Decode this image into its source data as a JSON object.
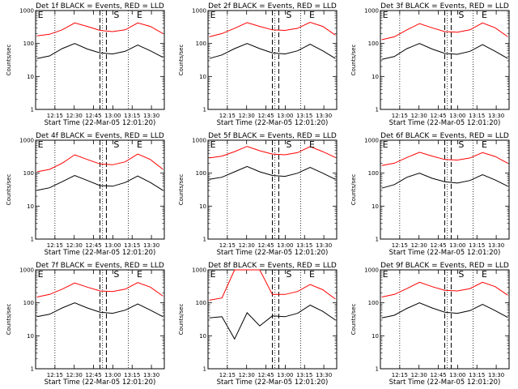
{
  "chart_data": [
    {
      "type": "line",
      "title": "Det 1f BLACK = Events, RED = LLD",
      "xlabel": "Start Time (22-Mar-05 12:01:20)",
      "ylabel": "Counts/sec",
      "y_scale": "log",
      "ylim": [
        1,
        1000
      ],
      "x_ticks": [
        "12:15",
        "12:30",
        "12:45",
        "13:00",
        "13:15",
        "13:30"
      ],
      "y_ticks": [
        "1",
        "10",
        "100",
        "1000"
      ],
      "markers": [
        "E",
        "S",
        "E"
      ],
      "series": [
        {
          "color": "#ff0000",
          "values": [
            170,
            190,
            260,
            420,
            330,
            250,
            230,
            260,
            420,
            330,
            200
          ]
        },
        {
          "color": "#000000",
          "values": [
            35,
            42,
            70,
            100,
            68,
            52,
            48,
            58,
            90,
            60,
            38
          ]
        }
      ]
    },
    {
      "type": "line",
      "title": "Det 2f BLACK = Events, RED = LLD",
      "xlabel": "Start Time (22-Mar-05 12:01:20)",
      "ylabel": "Counts/sec",
      "y_scale": "log",
      "ylim": [
        1,
        1000
      ],
      "x_ticks": [
        "12:15",
        "12:30",
        "12:45",
        "13:00",
        "13:15",
        "13:30"
      ],
      "y_ticks": [
        "1",
        "10",
        "100",
        "1000"
      ],
      "markers": [
        "E",
        "S",
        "E"
      ],
      "series": [
        {
          "color": "#ff0000",
          "values": [
            160,
            200,
            290,
            430,
            330,
            260,
            250,
            290,
            440,
            330,
            180
          ]
        },
        {
          "color": "#000000",
          "values": [
            35,
            45,
            70,
            100,
            70,
            52,
            48,
            60,
            95,
            60,
            35
          ]
        }
      ]
    },
    {
      "type": "line",
      "title": "Det 3f BLACK = Events, RED = LLD",
      "xlabel": "Start Time (22-Mar-05 12:01:20)",
      "ylabel": "Counts/sec",
      "y_scale": "log",
      "ylim": [
        1,
        1000
      ],
      "x_ticks": [
        "12:15",
        "12:30",
        "12:45",
        "13:00",
        "13:15",
        "13:30"
      ],
      "y_ticks": [
        "1",
        "10",
        "100",
        "1000"
      ],
      "markers": [
        "E",
        "S",
        "E"
      ],
      "series": [
        {
          "color": "#ff0000",
          "values": [
            130,
            160,
            260,
            400,
            300,
            230,
            220,
            260,
            420,
            300,
            160
          ]
        },
        {
          "color": "#000000",
          "values": [
            33,
            40,
            70,
            100,
            68,
            50,
            47,
            58,
            92,
            58,
            35
          ]
        }
      ]
    },
    {
      "type": "line",
      "title": "Det 4f BLACK = Events, RED = LLD",
      "xlabel": "Start Time (22-Mar-05 12:01:20)",
      "ylabel": "Counts/sec",
      "y_scale": "log",
      "ylim": [
        1,
        1000
      ],
      "x_ticks": [
        "12:15",
        "12:30",
        "12:45",
        "13:00",
        "13:15",
        "13:30"
      ],
      "y_ticks": [
        "1",
        "10",
        "100",
        "1000"
      ],
      "markers": [
        "E",
        "S",
        "E"
      ],
      "series": [
        {
          "color": "#ff0000",
          "values": [
            110,
            130,
            200,
            360,
            260,
            190,
            180,
            220,
            380,
            260,
            130
          ]
        },
        {
          "color": "#000000",
          "values": [
            30,
            36,
            55,
            85,
            60,
            42,
            40,
            52,
            82,
            52,
            30
          ]
        }
      ]
    },
    {
      "type": "line",
      "title": "Det 5f BLACK = Events, RED = LLD",
      "xlabel": "Start Time (22-Mar-05 12:01:20)",
      "ylabel": "Counts/sec",
      "y_scale": "log",
      "ylim": [
        1,
        1000
      ],
      "x_ticks": [
        "12:15",
        "12:30",
        "12:45",
        "13:00",
        "13:15",
        "13:30"
      ],
      "y_ticks": [
        "1",
        "10",
        "100",
        "1000"
      ],
      "markers": [
        "E",
        "S",
        "E"
      ],
      "series": [
        {
          "color": "#ff0000",
          "values": [
            290,
            330,
            450,
            650,
            480,
            380,
            360,
            420,
            640,
            450,
            300
          ]
        },
        {
          "color": "#000000",
          "values": [
            65,
            75,
            110,
            160,
            110,
            85,
            80,
            100,
            150,
            100,
            65
          ]
        }
      ]
    },
    {
      "type": "line",
      "title": "Det 6f BLACK = Events, RED = LLD",
      "xlabel": "Start Time (22-Mar-05 12:01:20)",
      "ylabel": "Counts/sec",
      "y_scale": "log",
      "ylim": [
        1,
        1000
      ],
      "x_ticks": [
        "12:15",
        "12:30",
        "12:45",
        "13:00",
        "13:15",
        "13:30"
      ],
      "y_ticks": [
        "1",
        "10",
        "100",
        "1000"
      ],
      "markers": [
        "E",
        "S",
        "E"
      ],
      "series": [
        {
          "color": "#ff0000",
          "values": [
            170,
            200,
            300,
            430,
            330,
            260,
            250,
            290,
            420,
            320,
            200
          ]
        },
        {
          "color": "#000000",
          "values": [
            35,
            45,
            75,
            100,
            70,
            55,
            50,
            60,
            90,
            62,
            40
          ]
        }
      ]
    },
    {
      "type": "line",
      "title": "Det 7f BLACK = Events, RED = LLD",
      "xlabel": "Start Time (22-Mar-05 12:01:20)",
      "ylabel": "Counts/sec",
      "y_scale": "log",
      "ylim": [
        1,
        1000
      ],
      "x_ticks": [
        "12:15",
        "12:30",
        "12:45",
        "13:00",
        "13:15",
        "13:30"
      ],
      "y_ticks": [
        "1",
        "10",
        "100",
        "1000"
      ],
      "markers": [
        "E",
        "S",
        "E"
      ],
      "series": [
        {
          "color": "#ff0000",
          "values": [
            150,
            180,
            260,
            400,
            300,
            230,
            220,
            260,
            410,
            300,
            160
          ]
        },
        {
          "color": "#000000",
          "values": [
            38,
            45,
            70,
            100,
            70,
            52,
            48,
            60,
            92,
            60,
            38
          ]
        }
      ]
    },
    {
      "type": "line",
      "title": "Det 8f BLACK = Events, RED = LLD",
      "xlabel": "Start Time (22-Mar-05 12:01:20)",
      "ylabel": "Counts/sec",
      "y_scale": "log",
      "ylim": [
        1,
        1000
      ],
      "x_ticks": [
        "12:15",
        "12:30",
        "12:45",
        "13:00",
        "13:15",
        "13:30"
      ],
      "y_ticks": [
        "1",
        "10",
        "100",
        "1000"
      ],
      "markers": [
        "E",
        "S",
        "E"
      ],
      "series": [
        {
          "color": "#ff0000",
          "values": [
            120,
            140,
            1000,
            1000,
            1000,
            180,
            180,
            220,
            360,
            250,
            130
          ]
        },
        {
          "color": "#000000",
          "values": [
            35,
            38,
            8,
            50,
            20,
            40,
            38,
            48,
            85,
            55,
            30
          ]
        }
      ]
    },
    {
      "type": "line",
      "title": "Det 9f BLACK = Events, RED = LLD",
      "xlabel": "Start Time (22-Mar-05 12:01:20)",
      "ylabel": "Counts/sec",
      "y_scale": "log",
      "ylim": [
        1,
        1000
      ],
      "x_ticks": [
        "12:15",
        "12:30",
        "12:45",
        "13:00",
        "13:15",
        "13:30"
      ],
      "y_ticks": [
        "1",
        "10",
        "100",
        "1000"
      ],
      "markers": [
        "E",
        "S",
        "E"
      ],
      "series": [
        {
          "color": "#ff0000",
          "values": [
            150,
            180,
            270,
            420,
            310,
            240,
            230,
            270,
            420,
            310,
            170
          ]
        },
        {
          "color": "#000000",
          "values": [
            35,
            42,
            68,
            100,
            70,
            52,
            48,
            58,
            90,
            58,
            36
          ]
        }
      ]
    }
  ]
}
